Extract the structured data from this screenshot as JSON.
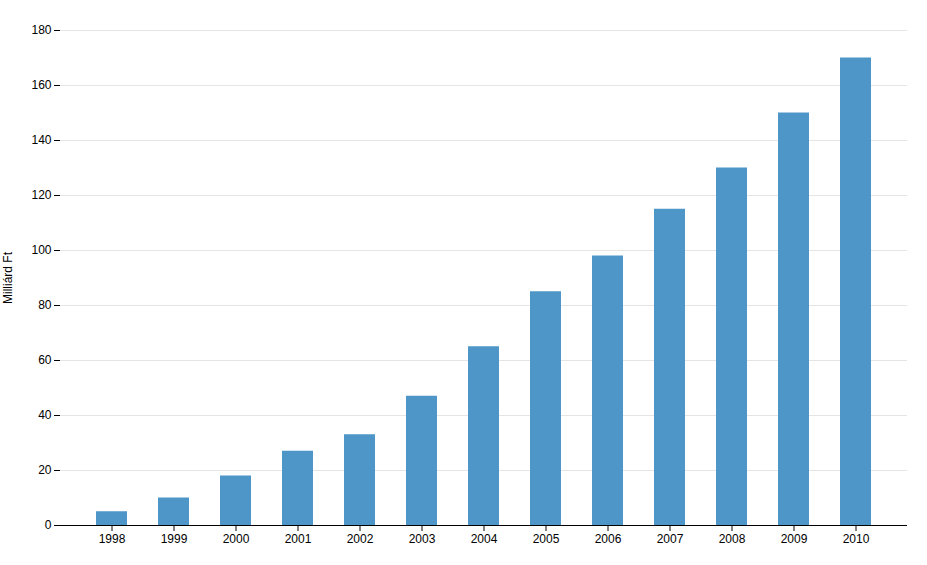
{
  "chart_data": {
    "type": "bar",
    "categories": [
      "1998",
      "1999",
      "2000",
      "2001",
      "2002",
      "2003",
      "2004",
      "2005",
      "2006",
      "2007",
      "2008",
      "2009",
      "2010"
    ],
    "values": [
      5,
      10,
      18,
      27,
      33,
      47,
      65,
      85,
      98,
      115,
      130,
      150,
      170
    ],
    "color": "#4F96C8",
    "ylabel": "Milliárd Ft",
    "ylim": [
      0,
      180
    ],
    "yticks": [
      0,
      20,
      40,
      60,
      80,
      100,
      120,
      140,
      160,
      180
    ],
    "grid": true
  }
}
